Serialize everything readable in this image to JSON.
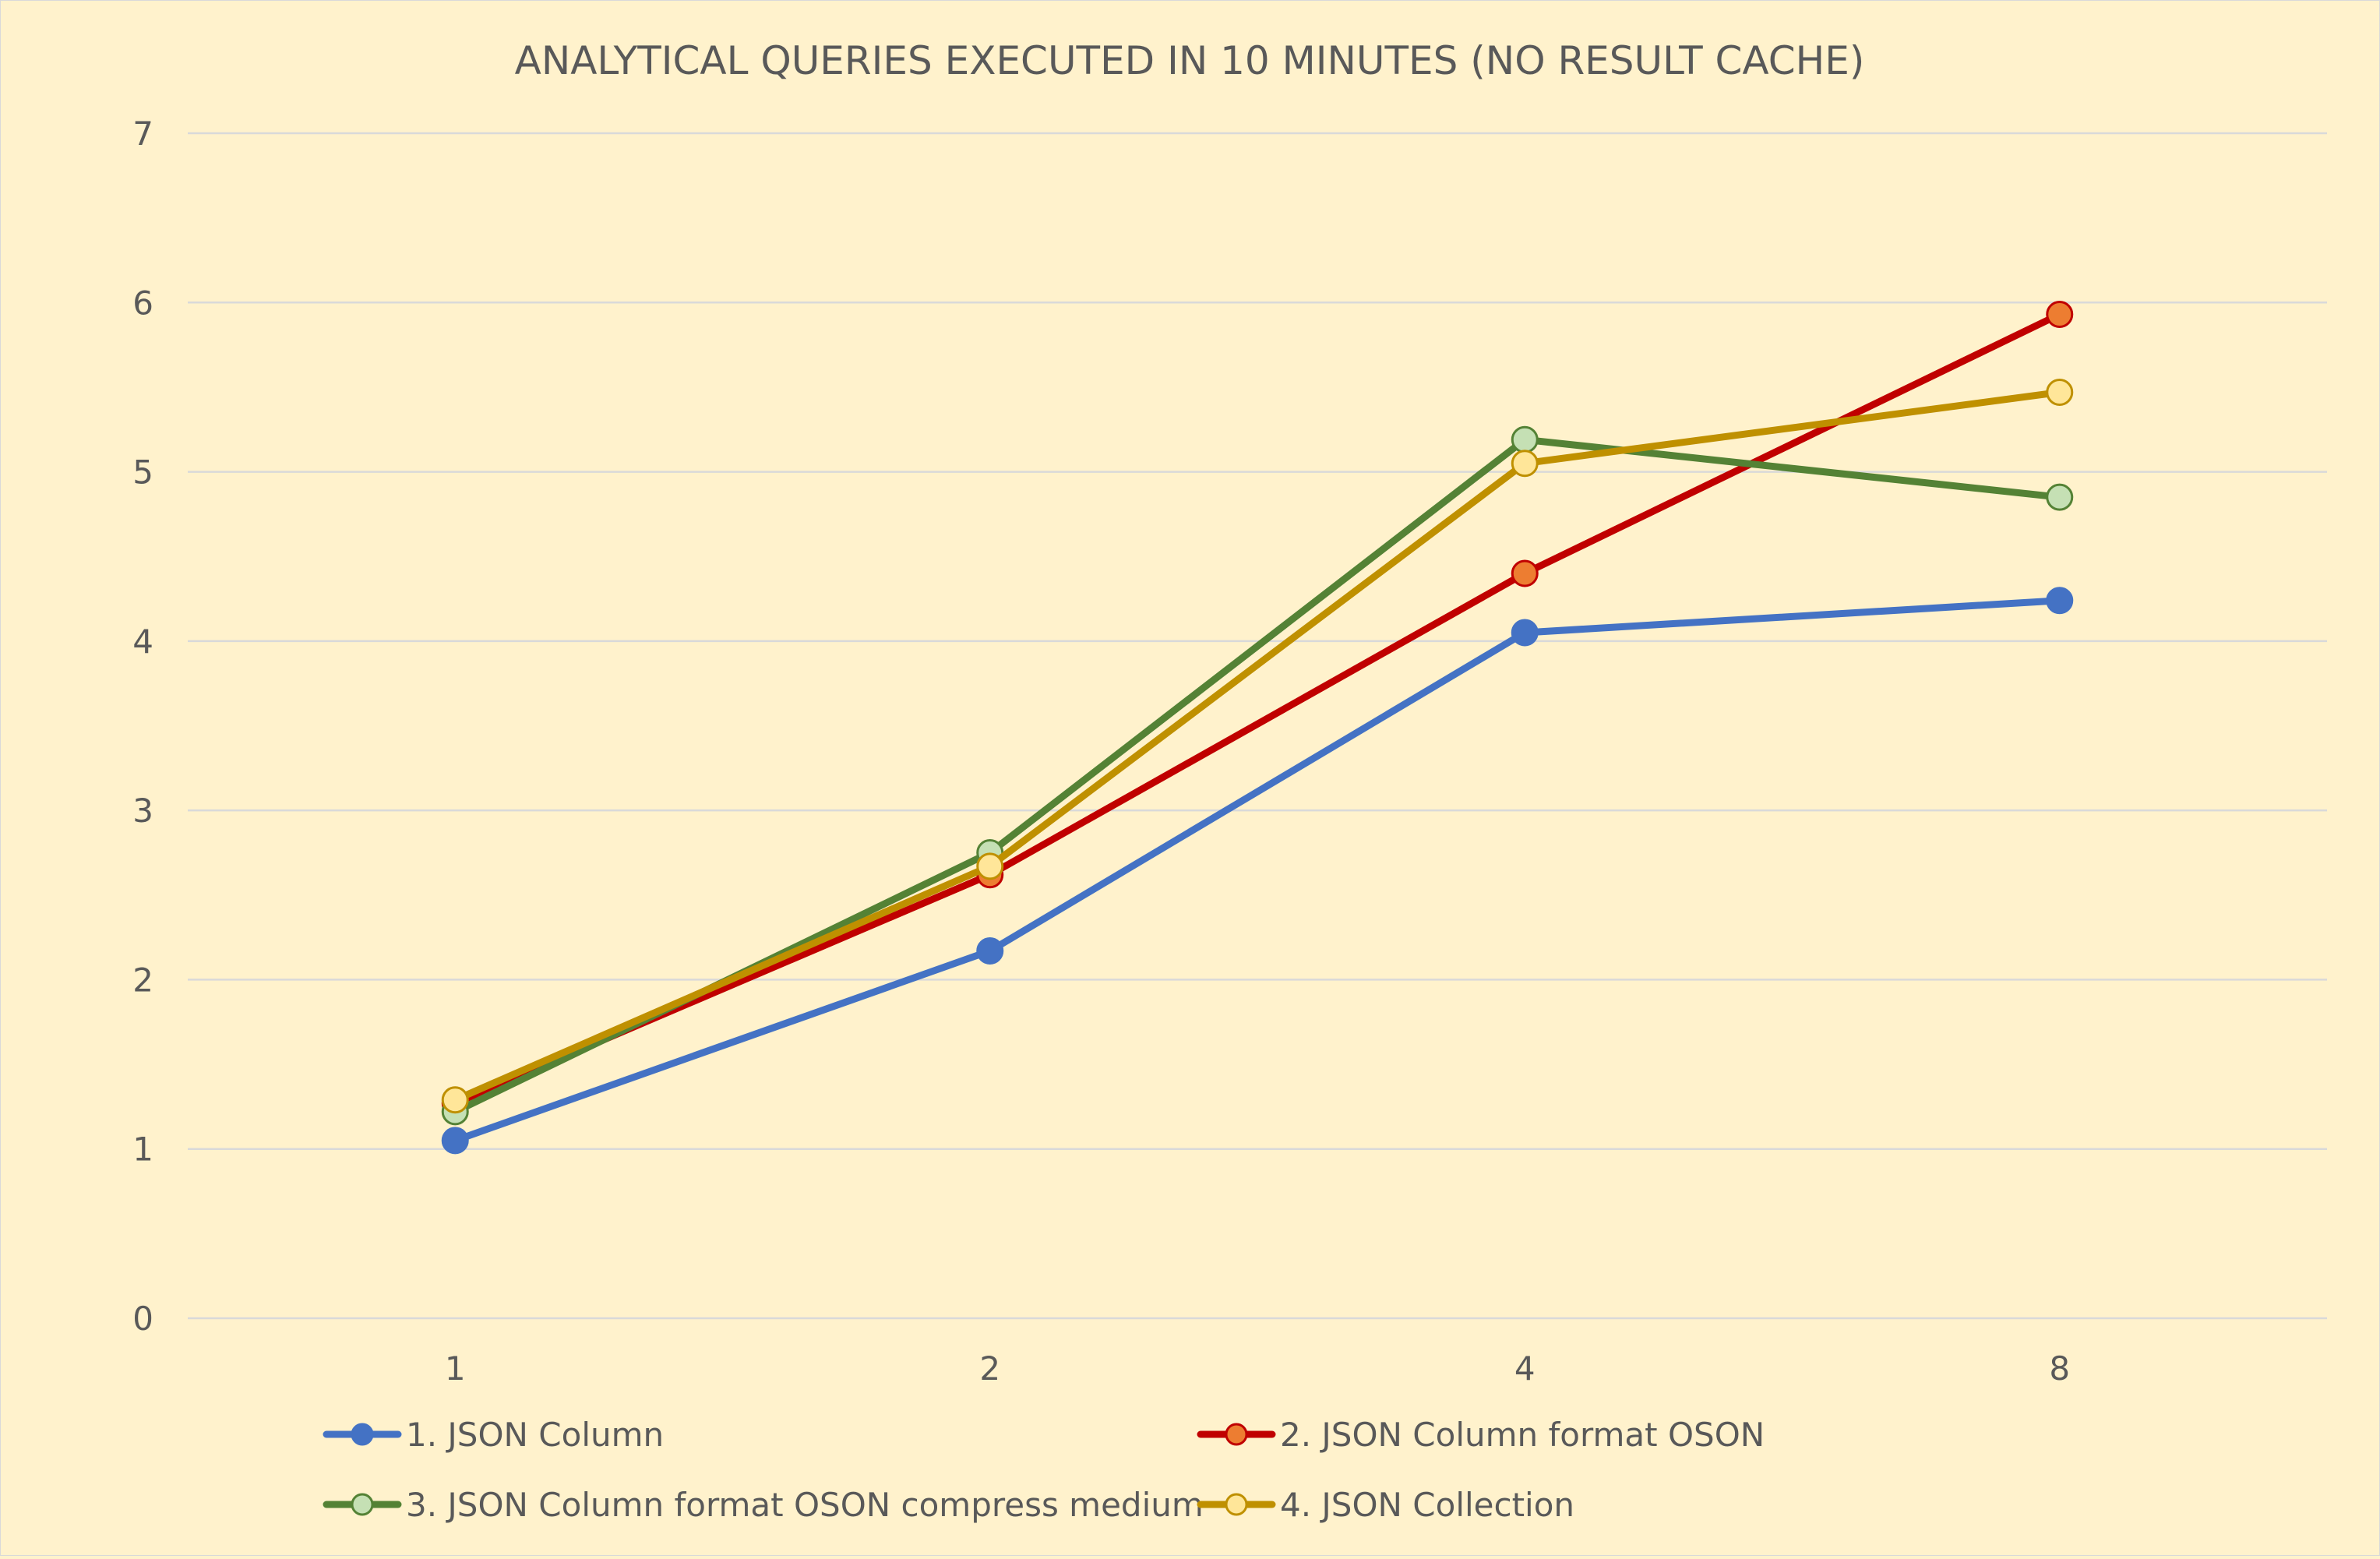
{
  "chart_data": {
    "type": "line",
    "title": "ANALYTICAL QUERIES EXECUTED IN 10 MINUTES (NO RESULT CACHE)",
    "xlabel": "",
    "ylabel": "",
    "categories": [
      "1",
      "2",
      "4",
      "8"
    ],
    "ylim": [
      0,
      7
    ],
    "yticks": [
      "0",
      "1",
      "2",
      "3",
      "4",
      "5",
      "6",
      "7"
    ],
    "grid": "horizontal",
    "legend_position": "bottom",
    "series": [
      {
        "name": "1. JSON Column",
        "values": [
          1.05,
          2.17,
          4.05,
          4.24
        ],
        "line_color": "#4472c4",
        "marker_fill": "#4472c4",
        "marker_stroke": "#4472c4"
      },
      {
        "name": "2. JSON Column format OSON",
        "values": [
          1.27,
          2.62,
          4.4,
          5.93
        ],
        "line_color": "#c00000",
        "marker_fill": "#ed7d31",
        "marker_stroke": "#c00000"
      },
      {
        "name": "3. JSON Column format OSON compress medium",
        "values": [
          1.22,
          2.75,
          5.19,
          4.85
        ],
        "line_color": "#548235",
        "marker_fill": "#c5e0b4",
        "marker_stroke": "#548235"
      },
      {
        "name": "4. JSON Collection",
        "values": [
          1.29,
          2.67,
          5.05,
          5.47
        ],
        "line_color": "#bf9000",
        "marker_fill": "#ffe699",
        "marker_stroke": "#bf9000"
      }
    ]
  }
}
